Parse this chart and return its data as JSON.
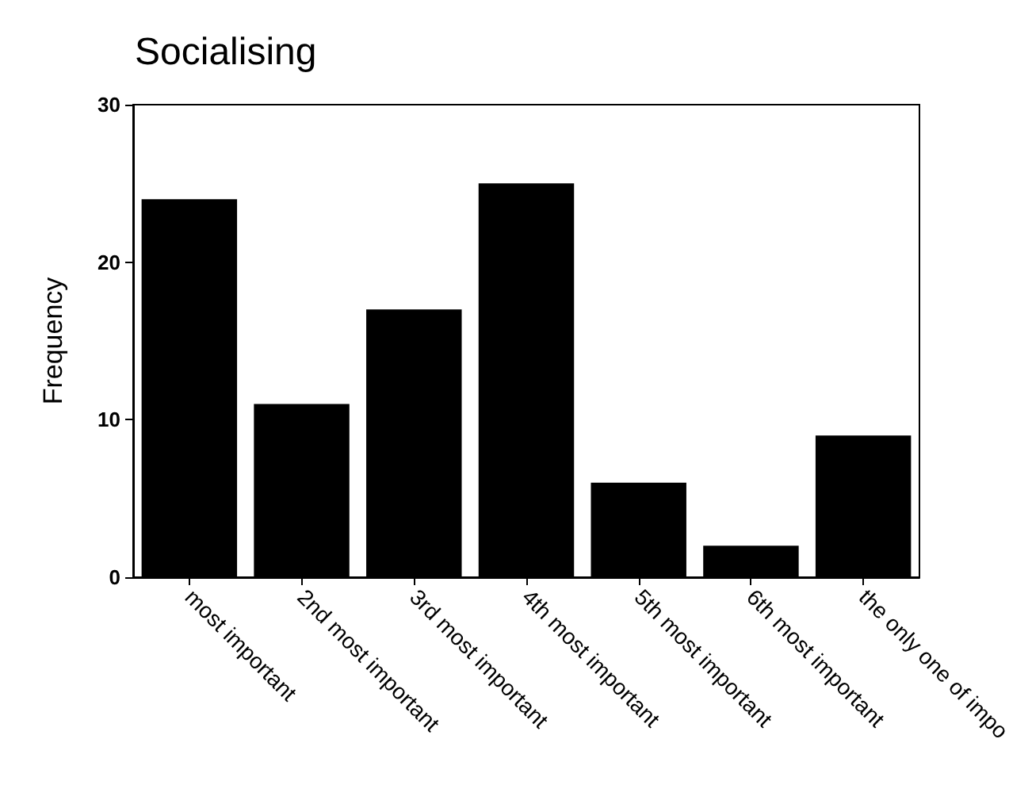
{
  "chart_data": {
    "type": "bar",
    "title": "Socialising",
    "ylabel": "Frequency",
    "categories": [
      "most important",
      "2nd most important",
      "3rd most important",
      "4th most important",
      "5th most important",
      "6th most important",
      "the only one of impo"
    ],
    "values": [
      24,
      11,
      17,
      25,
      6,
      2,
      9
    ],
    "color": "#000000",
    "ylim": [
      0,
      30
    ],
    "yticks": [
      0,
      10,
      20,
      30
    ],
    "grid": false
  }
}
